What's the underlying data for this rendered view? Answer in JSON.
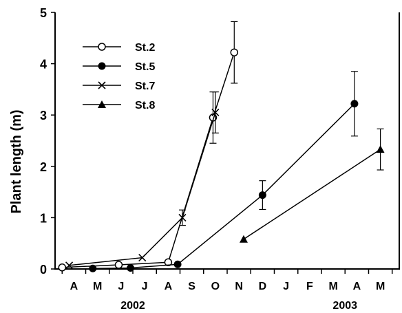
{
  "chart_data": {
    "type": "line",
    "ylabel": "Plant length (m)",
    "ylim": [
      0,
      5
    ],
    "yticks": [
      "0",
      "1",
      "2",
      "3",
      "4",
      "5"
    ],
    "x_month_labels": [
      "A",
      "M",
      "J",
      "J",
      "A",
      "S",
      "O",
      "N",
      "D",
      "J",
      "F",
      "M",
      "A",
      "M"
    ],
    "x_year_labels": [
      "2002",
      "2003"
    ],
    "x_range_months": [
      3.2,
      17.8
    ],
    "legend_position": "top-left",
    "series": [
      {
        "name": "St.2",
        "marker": "open-circle",
        "points": [
          {
            "x": 3.5,
            "y": 0.03,
            "err": 0
          },
          {
            "x": 5.9,
            "y": 0.08,
            "err": 0
          },
          {
            "x": 8.0,
            "y": 0.13,
            "err": 0
          },
          {
            "x": 9.9,
            "y": 2.95,
            "err": 0.5
          },
          {
            "x": 10.8,
            "y": 4.22,
            "err": 0.6
          }
        ]
      },
      {
        "name": "St.5",
        "marker": "filled-circle",
        "points": [
          {
            "x": 4.8,
            "y": 0.01,
            "err": 0
          },
          {
            "x": 6.4,
            "y": 0.02,
            "err": 0
          },
          {
            "x": 8.4,
            "y": 0.09,
            "err": 0
          },
          {
            "x": 12.0,
            "y": 1.44,
            "err": 0.28
          },
          {
            "x": 15.9,
            "y": 3.22,
            "err": 0.63
          }
        ]
      },
      {
        "name": "St.7",
        "marker": "cross",
        "points": [
          {
            "x": 3.8,
            "y": 0.07,
            "err": 0
          },
          {
            "x": 6.9,
            "y": 0.22,
            "err": 0
          },
          {
            "x": 8.6,
            "y": 1.0,
            "err": 0.15
          },
          {
            "x": 10.0,
            "y": 3.05,
            "err": 0.4
          }
        ]
      },
      {
        "name": "St.8",
        "marker": "filled-triangle",
        "points": [
          {
            "x": 11.2,
            "y": 0.58,
            "err": 0
          },
          {
            "x": 17.0,
            "y": 2.33,
            "err": 0.4
          }
        ]
      }
    ]
  }
}
